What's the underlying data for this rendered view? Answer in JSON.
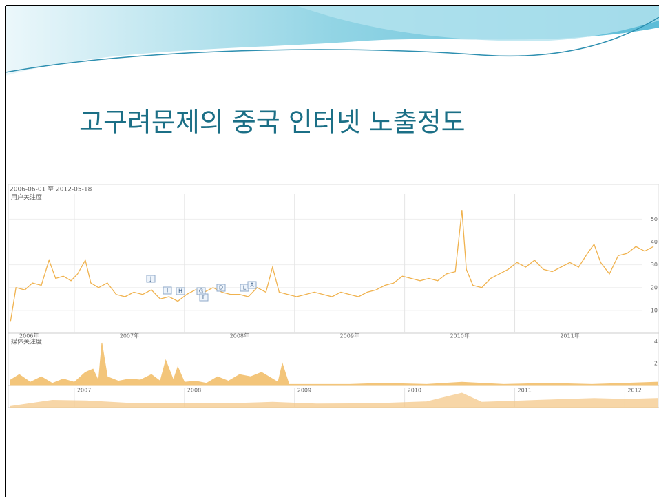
{
  "slide": {
    "title": "고구려문제의 중국 인터넷 노출정도"
  },
  "chart_data": [
    {
      "type": "line",
      "title": "用户关注度",
      "subtitle": "2006-06-01 至 2012-05-18",
      "color": "#f0b24e",
      "xlim": [
        2006.4,
        2012.31
      ],
      "ylim": [
        0,
        61
      ],
      "yticks": [
        10,
        20,
        30,
        40,
        50
      ],
      "xticks": [
        {
          "value": 2006,
          "label": "2006年"
        },
        {
          "value": 2007,
          "label": "2007年"
        },
        {
          "value": 2008,
          "label": "2008年"
        },
        {
          "value": 2009,
          "label": "2009年"
        },
        {
          "value": 2010,
          "label": "2010年"
        },
        {
          "value": 2011,
          "label": "2011年"
        }
      ],
      "grid": true,
      "annotations": [
        "J",
        "I",
        "H",
        "G",
        "F",
        "D",
        "L",
        "A"
      ],
      "x": [
        2006.42,
        2006.47,
        2006.55,
        2006.62,
        2006.7,
        2006.77,
        2006.83,
        2006.9,
        2006.97,
        2007.03,
        2007.1,
        2007.15,
        2007.22,
        2007.3,
        2007.38,
        2007.46,
        2007.54,
        2007.62,
        2007.7,
        2007.78,
        2007.86,
        2007.94,
        2008.02,
        2008.1,
        2008.18,
        2008.26,
        2008.34,
        2008.42,
        2008.5,
        2008.58,
        2008.66,
        2008.74,
        2008.8,
        2008.86,
        2008.94,
        2009.02,
        2009.1,
        2009.18,
        2009.26,
        2009.34,
        2009.42,
        2009.5,
        2009.58,
        2009.66,
        2009.74,
        2009.82,
        2009.9,
        2009.98,
        2010.06,
        2010.14,
        2010.22,
        2010.3,
        2010.38,
        2010.46,
        2010.52,
        2010.56,
        2010.62,
        2010.7,
        2010.78,
        2010.86,
        2010.94,
        2011.02,
        2011.1,
        2011.18,
        2011.26,
        2011.34,
        2011.42,
        2011.5,
        2011.58,
        2011.66,
        2011.72,
        2011.78,
        2011.86,
        2011.94,
        2012.02,
        2012.1,
        2012.18,
        2012.26
      ],
      "series": [
        {
          "values": [
            5,
            20,
            19,
            22,
            21,
            32,
            24,
            25,
            23,
            26,
            32,
            22,
            20,
            22,
            17,
            16,
            18,
            17,
            19,
            15,
            16,
            14,
            17,
            19,
            18,
            20,
            18,
            17,
            17,
            16,
            20,
            18,
            29,
            18,
            17,
            16,
            17,
            18,
            17,
            16,
            18,
            17,
            16,
            18,
            19,
            21,
            22,
            25,
            24,
            23,
            24,
            23,
            26,
            27,
            54,
            28,
            21,
            20,
            24,
            26,
            28,
            31,
            29,
            32,
            28,
            27,
            29,
            31,
            29,
            35,
            39,
            31,
            26,
            34,
            35,
            38,
            36,
            38
          ]
        }
      ]
    },
    {
      "type": "area",
      "title": "媒体关注度",
      "color": "#f0b24e",
      "xlim": [
        2006.4,
        2012.31
      ],
      "ylim": [
        0,
        4.4
      ],
      "yticks": [
        2,
        4
      ],
      "x": [
        2006.42,
        2006.5,
        2006.6,
        2006.7,
        2006.8,
        2006.9,
        2007.0,
        2007.1,
        2007.17,
        2007.22,
        2007.25,
        2007.3,
        2007.4,
        2007.5,
        2007.6,
        2007.7,
        2007.78,
        2007.83,
        2007.9,
        2007.94,
        2008.0,
        2008.1,
        2008.2,
        2008.3,
        2008.4,
        2008.5,
        2008.6,
        2008.7,
        2008.85,
        2008.89,
        2008.95,
        2009.2,
        2009.5,
        2009.8,
        2010.2,
        2010.52,
        2010.9,
        2011.3,
        2011.7,
        2012.0,
        2012.3
      ],
      "series": [
        {
          "values": [
            0.5,
            1.0,
            0.3,
            0.8,
            0.2,
            0.6,
            0.3,
            1.2,
            1.5,
            0.4,
            3.9,
            0.8,
            0.4,
            0.6,
            0.5,
            1.0,
            0.4,
            2.3,
            0.5,
            1.7,
            0.3,
            0.4,
            0.2,
            0.8,
            0.4,
            1.0,
            0.8,
            1.2,
            0.3,
            2.0,
            0.1,
            0.1,
            0.1,
            0.2,
            0.1,
            0.3,
            0.1,
            0.2,
            0.1,
            0.2,
            0.3
          ]
        }
      ]
    },
    {
      "type": "area",
      "color": "#f5c98a",
      "xlim": [
        2006.4,
        2012.31
      ],
      "ylim": [
        0,
        80
      ],
      "xticks": [
        {
          "value": 2007,
          "label": "2007"
        },
        {
          "value": 2008,
          "label": "2008"
        },
        {
          "value": 2009,
          "label": "2009"
        },
        {
          "value": 2010,
          "label": "2010"
        },
        {
          "value": 2011,
          "label": "2011"
        },
        {
          "value": 2012,
          "label": "2012"
        }
      ],
      "x": [
        2006.42,
        2006.8,
        2007.1,
        2007.5,
        2008.0,
        2008.5,
        2008.8,
        2009.2,
        2009.7,
        2010.2,
        2010.52,
        2010.7,
        2011.2,
        2011.72,
        2012.0,
        2012.3
      ],
      "series": [
        {
          "values": [
            5,
            30,
            28,
            18,
            16,
            18,
            22,
            15,
            16,
            24,
            60,
            22,
            30,
            38,
            34,
            38
          ]
        }
      ]
    }
  ]
}
